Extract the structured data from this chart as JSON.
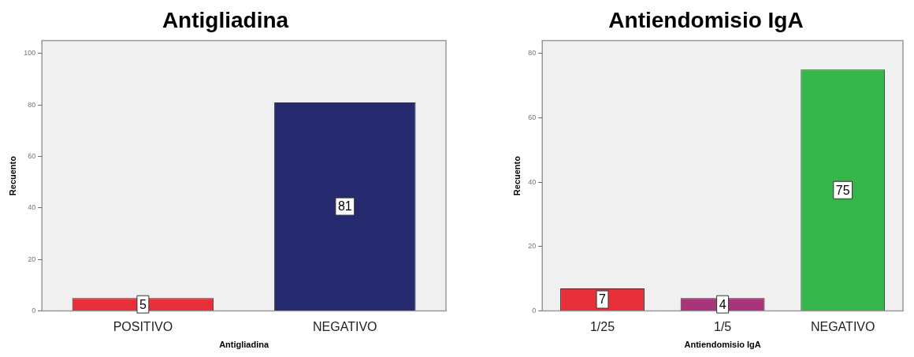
{
  "chart_data": [
    {
      "type": "bar",
      "title": "Antigliadina",
      "xlabel": "Antigliadina",
      "ylabel": "Recuento",
      "categories": [
        "POSITIVO",
        "NEGATIVO"
      ],
      "values": [
        5,
        81
      ],
      "colors": [
        "#e8303a",
        "#262a6e"
      ],
      "ylim": [
        0,
        105
      ],
      "yticks": [
        0,
        20,
        40,
        60,
        80,
        100
      ],
      "grid": false,
      "legend": false,
      "data_labels": true
    },
    {
      "type": "bar",
      "title": "Antiendomisio IgA",
      "xlabel": "Antiendomisio IgA",
      "ylabel": "Recuento",
      "categories": [
        "1/25",
        "1/5",
        "NEGATIVO"
      ],
      "values": [
        7,
        4,
        75
      ],
      "colors": [
        "#e8303a",
        "#a8347a",
        "#35b54a"
      ],
      "ylim": [
        0,
        84
      ],
      "yticks": [
        0,
        20,
        40,
        60,
        80
      ],
      "grid": false,
      "legend": false,
      "data_labels": true
    }
  ]
}
